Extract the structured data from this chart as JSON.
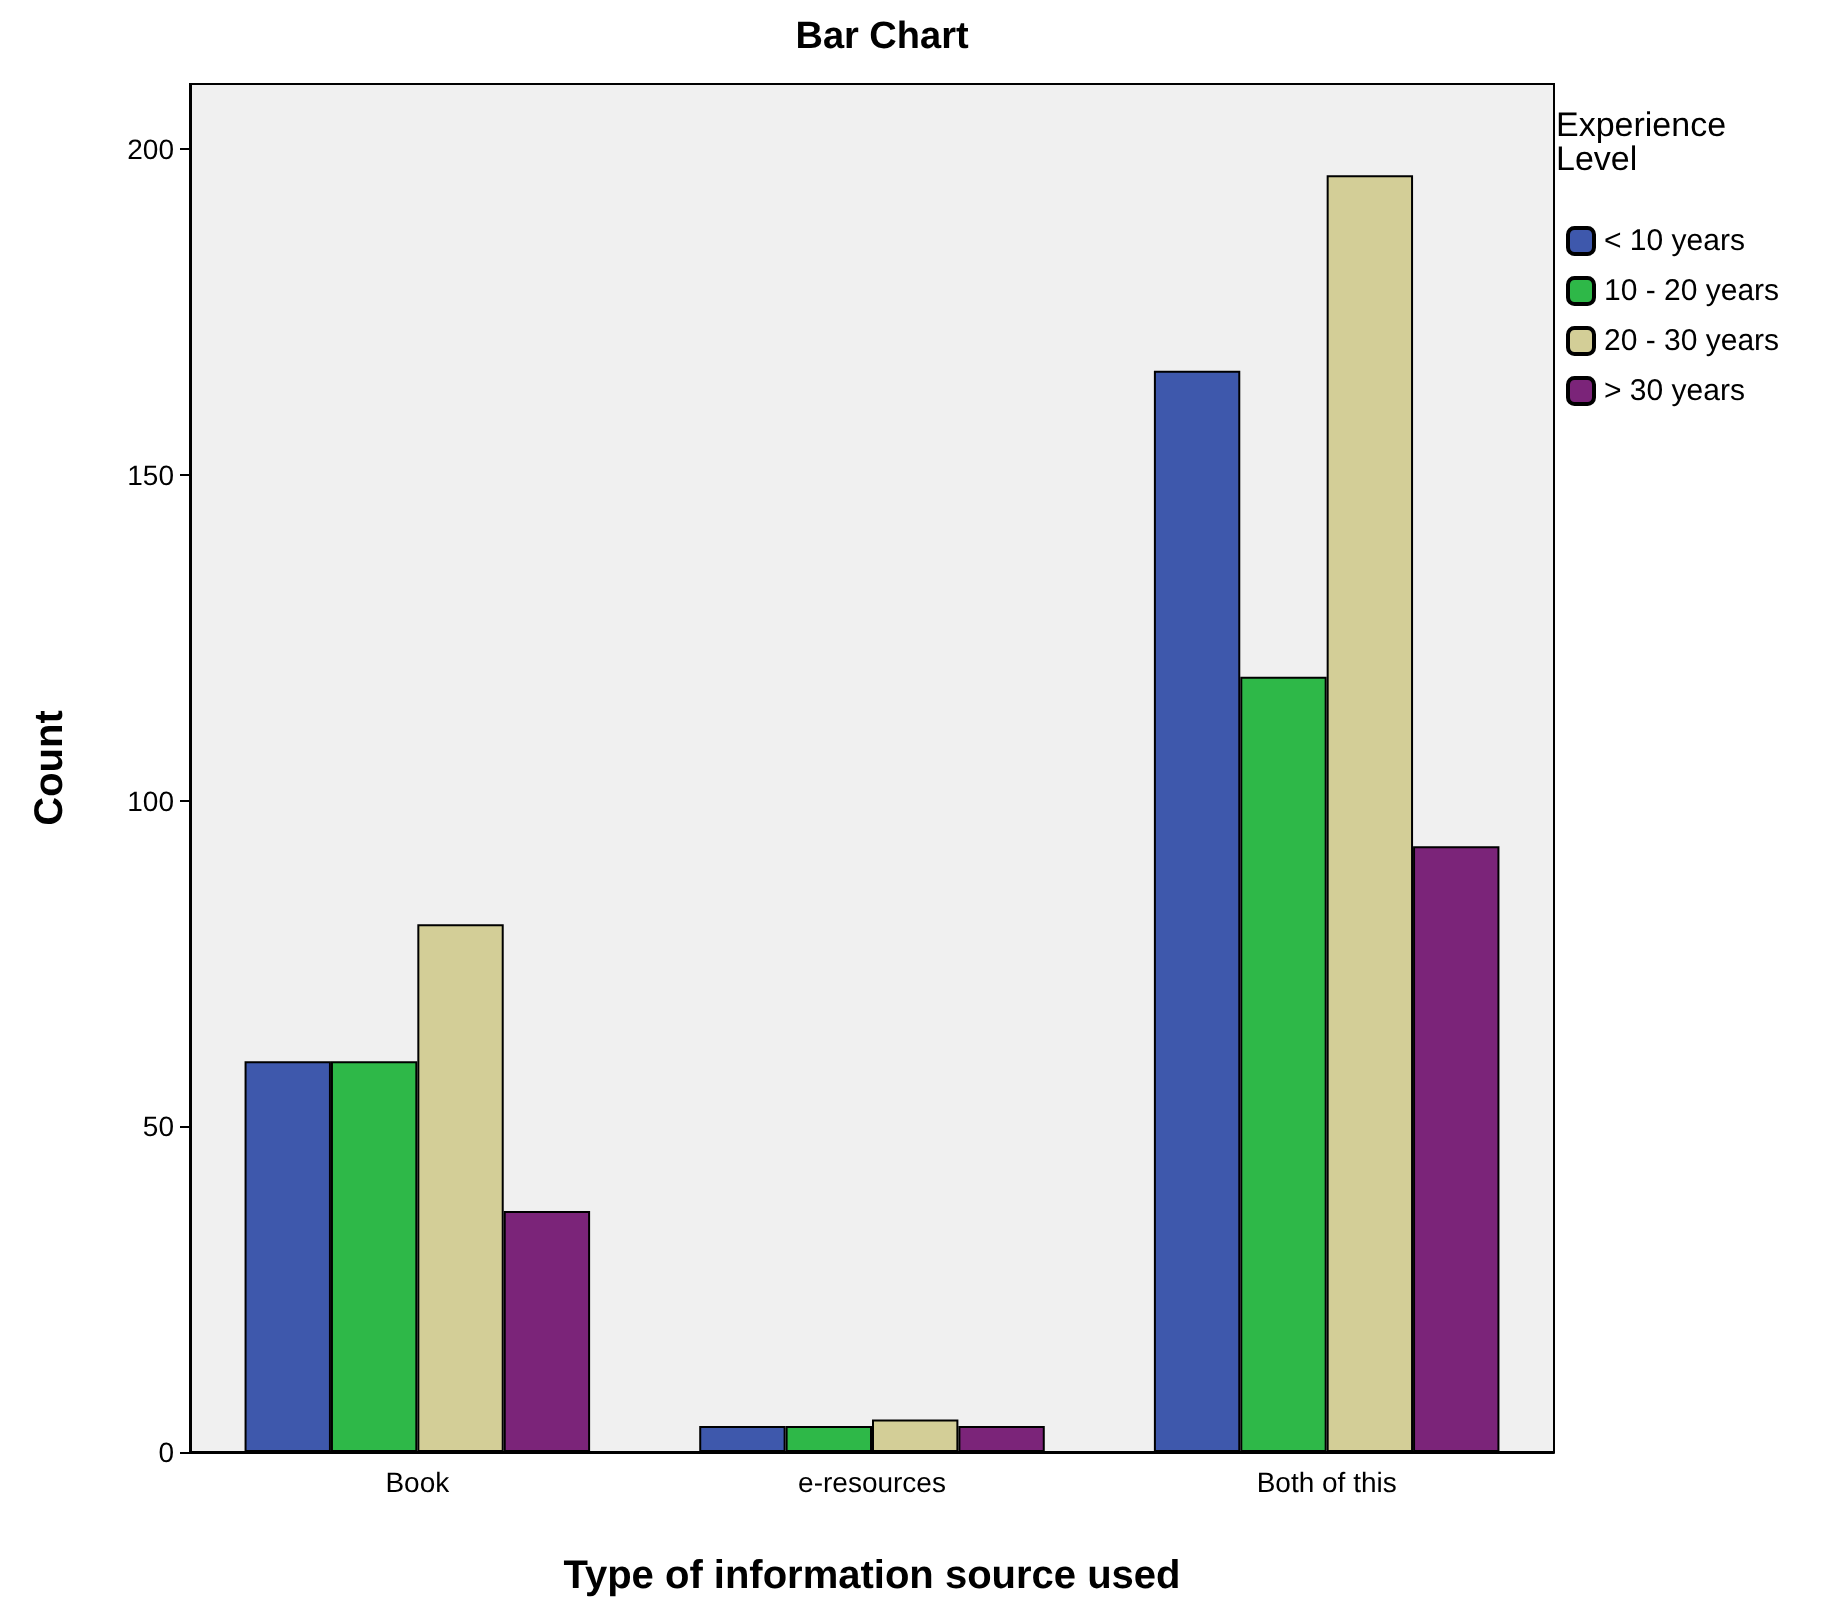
{
  "chart_data": {
    "type": "bar",
    "title": "Bar Chart",
    "xlabel": "Type of information source used",
    "ylabel": "Count",
    "legend_title": "Experience Level",
    "categories": [
      "Book",
      "e-resources",
      "Both of this"
    ],
    "series": [
      {
        "name": "< 10 years",
        "color": "#3e58ac",
        "values": [
          60,
          4,
          166
        ]
      },
      {
        "name": "10 - 20 years",
        "color": "#2eb848",
        "values": [
          60,
          4,
          119
        ]
      },
      {
        "name": "20 - 30 years",
        "color": "#d3ce97",
        "values": [
          81,
          5,
          196
        ]
      },
      {
        "name": "> 30 years",
        "color": "#7b2479",
        "values": [
          37,
          4,
          93
        ]
      }
    ],
    "ylim": [
      0,
      210
    ],
    "yticks": [
      0,
      50,
      100,
      150,
      200
    ],
    "grid": false,
    "legend": "top right"
  }
}
